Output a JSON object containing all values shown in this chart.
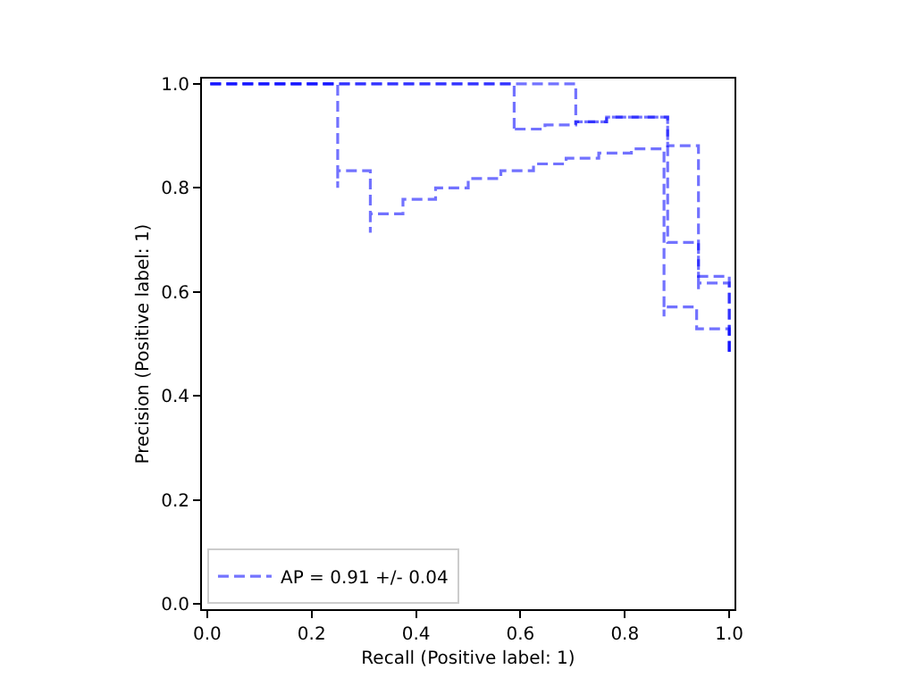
{
  "chart_data": {
    "type": "step",
    "xlabel": "Recall (Positive label: 1)",
    "ylabel": "Precision (Positive label: 1)",
    "series": [
      {
        "name": "AP = 0.91 +/- 0.04",
        "color": "#0000ff",
        "x": [
          1.0,
          1.0,
          0.9375,
          0.875,
          0.875,
          0.8125,
          0.75,
          0.6875,
          0.625,
          0.5625,
          0.5,
          0.4375,
          0.375,
          0.3125,
          0.3125,
          0.25,
          0.25,
          0.0
        ],
        "values": [
          0.485,
          0.529,
          0.571,
          0.553,
          0.875,
          0.867,
          0.857,
          0.846,
          0.833,
          0.818,
          0.8,
          0.778,
          0.75,
          0.714,
          0.833,
          0.8,
          1.0,
          1.0
        ]
      },
      {
        "color": "#0000ff",
        "x": [
          1.0,
          1.0,
          0.941,
          0.882,
          0.824,
          0.765,
          0.706,
          0.647,
          0.588,
          0.588,
          0.0
        ],
        "values": [
          0.485,
          0.63,
          0.695,
          0.936,
          0.936,
          0.927,
          0.921,
          0.913,
          0.909,
          1.0,
          1.0
        ]
      },
      {
        "color": "#0000ff",
        "x": [
          1.0,
          1.0,
          0.941,
          0.941,
          0.882,
          0.882,
          0.824,
          0.765,
          0.706,
          0.706,
          0.0
        ],
        "values": [
          0.485,
          0.617,
          0.605,
          0.881,
          0.881,
          0.936,
          0.936,
          0.927,
          0.921,
          1.0,
          1.0
        ]
      }
    ],
    "xlim": [
      -0.01,
      1.01
    ],
    "ylim": [
      -0.01,
      1.01
    ],
    "xticks": [
      {
        "value": 0,
        "label": "0.0"
      },
      {
        "value": 0.2,
        "label": "0.2"
      },
      {
        "value": 0.4,
        "label": "0.4"
      },
      {
        "value": 0.6,
        "label": "0.6"
      },
      {
        "value": 0.8,
        "label": "0.8"
      },
      {
        "value": 1,
        "label": "1.0"
      }
    ],
    "yticks": [
      {
        "value": 0,
        "label": "0.0"
      },
      {
        "value": 0.2,
        "label": "0.2"
      },
      {
        "value": 0.4,
        "label": "0.4"
      },
      {
        "value": 0.6,
        "label": "0.6"
      },
      {
        "value": 0.8,
        "label": "0.8"
      },
      {
        "value": 1,
        "label": "1.0"
      }
    ],
    "legend": "bottom left",
    "line_style": "dashed",
    "marker": "none"
  }
}
